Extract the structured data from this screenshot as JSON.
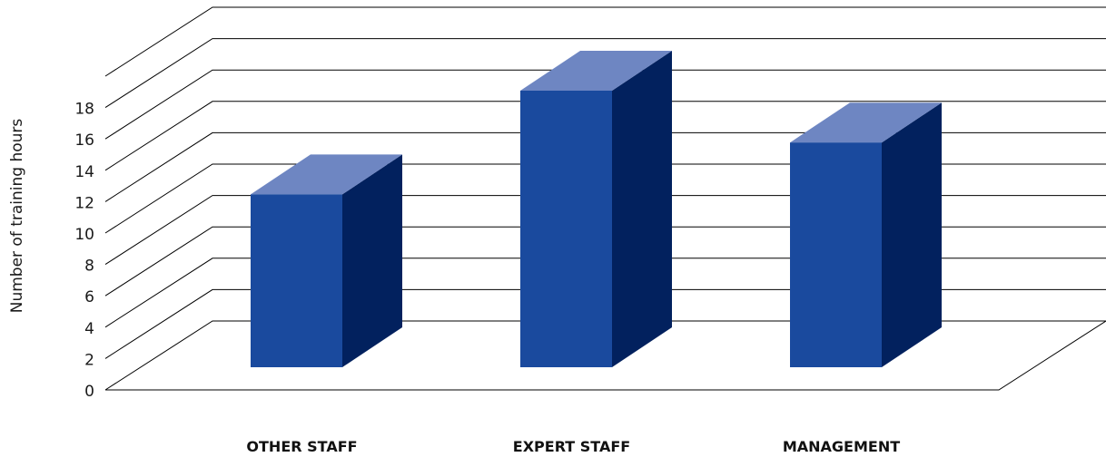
{
  "chart_data": {
    "type": "bar",
    "categories": [
      "OTHER STAFF",
      "EXPERT STAFF",
      "MANAGEMENT"
    ],
    "values": [
      10,
      16,
      13
    ],
    "ylabel": "Number of training hours",
    "ylim": [
      0,
      18
    ],
    "yticks": [
      0,
      2,
      4,
      6,
      8,
      10,
      12,
      14,
      16,
      18
    ],
    "grid": true,
    "style": "3d-column",
    "colors": {
      "front": "#1a4a9e",
      "side": "#02215e",
      "top": "#6e86c2",
      "grid": "#000000"
    }
  }
}
